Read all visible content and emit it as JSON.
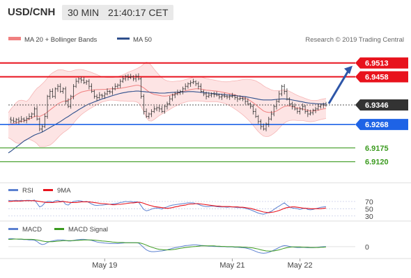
{
  "header": {
    "symbol": "USD/CNH",
    "timeframe": "30 MIN",
    "clock": "21:40:17 CET"
  },
  "legend": {
    "bb_label": "MA 20 + Bollinger Bands",
    "ma50_label": "MA 50",
    "copyright": "Research © 2019 Trading Central"
  },
  "colors": {
    "bb_fill": "#fde4e4",
    "bb_line": "#f08080",
    "ma50": "#2e4f8c",
    "price": "#333333",
    "resistance": "#e8121c",
    "current": "#333333",
    "pivot": "#1e63e6",
    "support": "#3a9a1e",
    "arrow": "#2e56a8",
    "rsi": "#5b80d0",
    "rsi_ma": "#e8121c",
    "macd": "#5b80d0",
    "macd_signal": "#3a9a1e"
  },
  "chart_data": [
    {
      "type": "line",
      "name": "price",
      "y_range": [
        6.905,
        6.957
      ],
      "x_ticks": [
        "May 19",
        "May 21",
        "May 22"
      ],
      "levels": [
        {
          "label": "6.9513",
          "value": 6.9513,
          "kind": "resistance"
        },
        {
          "label": "6.9458",
          "value": 6.9458,
          "kind": "resistance"
        },
        {
          "label": "6.9346",
          "value": 6.9346,
          "kind": "current"
        },
        {
          "label": "6.9268",
          "value": 6.9268,
          "kind": "pivot"
        },
        {
          "label": "6.9175",
          "value": 6.9175,
          "kind": "support"
        },
        {
          "label": "6.9120",
          "value": 6.912,
          "kind": "support"
        }
      ],
      "price": [
        6.929,
        6.9285,
        6.928,
        6.9288,
        6.9282,
        6.929,
        6.9285,
        6.9292,
        6.93,
        6.931,
        6.933,
        6.929,
        6.925,
        6.926,
        6.93,
        6.938,
        6.94,
        6.938,
        6.941,
        6.942,
        6.94,
        6.941,
        6.936,
        6.934,
        6.938,
        6.942,
        6.944,
        6.945,
        6.9445,
        6.9435,
        6.944,
        6.942,
        6.94,
        6.938,
        6.9375,
        6.9385,
        6.9382,
        6.939,
        6.94,
        6.9398,
        6.941,
        6.942,
        6.9425,
        6.944,
        6.945,
        6.946,
        6.9455,
        6.9458,
        6.945,
        6.946,
        6.945,
        6.938,
        6.932,
        6.93,
        6.931,
        6.932,
        6.933,
        6.9335,
        6.933,
        6.932,
        6.934,
        6.935,
        6.937,
        6.9385,
        6.939,
        6.9395,
        6.94,
        6.941,
        6.942,
        6.943,
        6.9435,
        6.9438,
        6.943,
        6.942,
        6.94,
        6.939,
        6.938,
        6.9385,
        6.939,
        6.9388,
        6.9385,
        6.9378,
        6.9382,
        6.938,
        6.9378,
        6.938,
        6.9382,
        6.9375,
        6.937,
        6.9372,
        6.937,
        6.936,
        6.935,
        6.934,
        6.932,
        6.93,
        6.928,
        6.926,
        6.925,
        6.927,
        6.929,
        6.931,
        6.934,
        6.936,
        6.939,
        6.942,
        6.94,
        6.937,
        6.935,
        6.934,
        6.933,
        6.932,
        6.933,
        6.934,
        6.932,
        6.931,
        6.9315,
        6.9325,
        6.933,
        6.934,
        6.9346,
        6.9345,
        6.9346
      ],
      "ma20": [
        6.9265,
        6.927,
        6.9272,
        6.9275,
        6.9278,
        6.928,
        6.9283,
        6.9285,
        6.929,
        6.9295,
        6.93,
        6.9302,
        6.93,
        6.9305,
        6.931,
        6.9318,
        6.9326,
        6.9334,
        6.9342,
        6.935,
        6.9356,
        6.936,
        6.9362,
        6.9365,
        6.937,
        6.9378,
        6.9386,
        6.9392,
        6.9397,
        6.94,
        6.9402,
        6.9404,
        6.9405,
        6.9406,
        6.9407,
        6.9407,
        6.9408,
        6.9408,
        6.9409,
        6.941,
        6.941,
        6.941,
        6.9411,
        6.9412,
        6.9414,
        6.9416,
        6.9418,
        6.942,
        6.9422,
        6.9424,
        6.9424,
        6.942,
        6.9414,
        6.9406,
        6.9398,
        6.9392,
        6.9388,
        6.9386,
        6.9384,
        6.9382,
        6.9381,
        6.9382,
        6.9384,
        6.9387,
        6.939,
        6.9393,
        6.9396,
        6.9399,
        6.9402,
        6.9405,
        6.9407,
        6.9409,
        6.941,
        6.941,
        6.9409,
        6.9407,
        6.9405,
        6.9404,
        6.9403,
        6.9402,
        6.9401,
        6.9399,
        6.9397,
        6.9395,
        6.9393,
        6.9391,
        6.9389,
        6.9386,
        6.9383,
        6.938,
        6.9377,
        6.9373,
        6.9368,
        6.9362,
        6.9355,
        6.9347,
        6.9338,
        6.933,
        6.9322,
        6.9318,
        6.9316,
        6.9316,
        6.9318,
        6.9322,
        6.9328,
        6.9335,
        6.934,
        6.9342,
        6.9342,
        6.934,
        6.9337,
        6.9334,
        6.9332,
        6.933,
        6.9327,
        6.9324,
        6.9322,
        6.9322,
        6.9323,
        6.9325,
        6.9328,
        6.933,
        6.9332
      ],
      "bb_width": [
        0.005,
        0.006,
        0.007,
        0.008,
        0.0085,
        0.0085,
        0.008,
        0.0075,
        0.008,
        0.009,
        0.01,
        0.011,
        0.012,
        0.0125,
        0.013,
        0.0135,
        0.014,
        0.014,
        0.0138,
        0.0135,
        0.013,
        0.0125,
        0.012,
        0.0115,
        0.011,
        0.0105,
        0.01,
        0.0095,
        0.009,
        0.0085,
        0.008,
        0.0075,
        0.007,
        0.0065,
        0.006,
        0.0055,
        0.005,
        0.0048,
        0.0046,
        0.0045,
        0.0045,
        0.0046,
        0.0048,
        0.005,
        0.0052,
        0.0055,
        0.0058,
        0.006,
        0.0062,
        0.0065,
        0.007,
        0.008,
        0.0095,
        0.011,
        0.0115,
        0.011,
        0.01,
        0.009,
        0.008,
        0.0072,
        0.0065,
        0.006,
        0.0056,
        0.0052,
        0.005,
        0.0048,
        0.0046,
        0.0045,
        0.0045,
        0.0045,
        0.0046,
        0.0047,
        0.0048,
        0.0048,
        0.0048,
        0.0047,
        0.0046,
        0.0045,
        0.0044,
        0.0043,
        0.0042,
        0.0042,
        0.0042,
        0.0043,
        0.0045,
        0.0048,
        0.0052,
        0.0056,
        0.006,
        0.0065,
        0.007,
        0.0075,
        0.008,
        0.0085,
        0.009,
        0.0095,
        0.0098,
        0.01,
        0.01,
        0.0098,
        0.0095,
        0.009,
        0.0085,
        0.008,
        0.0075,
        0.007,
        0.0066,
        0.0062,
        0.0058,
        0.0055,
        0.0052,
        0.005,
        0.0048,
        0.0046,
        0.0045,
        0.0044,
        0.0043,
        0.0042,
        0.0041,
        0.004,
        0.004,
        0.004,
        0.004
      ],
      "ma50": [
        6.9155,
        6.9162,
        6.917,
        6.9178,
        6.9186,
        6.9194,
        6.9202,
        6.9208,
        6.9214,
        6.922,
        6.9226,
        6.923,
        6.9234,
        6.9238,
        6.9244,
        6.925,
        6.9256,
        6.9262,
        6.9268,
        6.9274,
        6.928,
        6.9287,
        6.9294,
        6.93,
        6.9307,
        6.9314,
        6.932,
        6.9327,
        6.9333,
        6.9339,
        6.9345,
        6.935,
        6.9354,
        6.9358,
        6.9362,
        6.9366,
        6.937,
        6.9373,
        6.9376,
        6.938,
        6.9383,
        6.9386,
        6.9389,
        6.9392,
        6.9394,
        6.9396,
        6.9398,
        6.9399,
        6.94,
        6.9401,
        6.9401,
        6.94,
        6.9399,
        6.9398,
        6.9397,
        6.9396,
        6.9395,
        6.9394,
        6.9393,
        6.9393,
        6.9393,
        6.9394,
        6.9395,
        6.9396,
        6.9396,
        6.9397,
        6.9397,
        6.9398,
        6.9398,
        6.9399,
        6.9399,
        6.9399,
        6.9398,
        6.9397,
        6.9396,
        6.9395,
        6.9394,
        6.9393,
        6.9392,
        6.9391,
        6.939,
        6.9389,
        6.9388,
        6.9387,
        6.9386,
        6.9385,
        6.9384,
        6.9383,
        6.9382,
        6.9381,
        6.938,
        6.9379,
        6.9377,
        6.9375,
        6.9373,
        6.9371,
        6.9369,
        6.9367,
        6.9366,
        6.9366,
        6.9366,
        6.9366,
        6.9367,
        6.9368,
        6.9369,
        6.937,
        6.937,
        6.9369,
        6.9368,
        6.9366,
        6.9364,
        6.9362,
        6.936,
        6.9358,
        6.9356,
        6.9354,
        6.9353,
        6.9352,
        6.9351,
        6.935,
        6.935,
        6.935,
        6.935
      ]
    },
    {
      "type": "line",
      "name": "rsi",
      "title": "RSI",
      "ma_label": "9MA",
      "y_range": [
        20,
        85
      ],
      "y_ticks": [
        70,
        50,
        30
      ],
      "rsi": [
        73,
        72,
        72,
        73,
        72,
        73,
        72,
        73,
        73,
        72,
        74,
        65,
        55,
        58,
        66,
        70,
        70,
        68,
        72,
        73,
        70,
        71,
        62,
        60,
        66,
        70,
        71,
        72,
        71,
        69,
        70,
        67,
        63,
        60,
        59,
        60,
        60,
        61,
        62,
        62,
        63,
        64,
        65,
        67,
        68,
        70,
        69,
        70,
        68,
        69,
        68,
        58,
        48,
        44,
        46,
        49,
        51,
        52,
        51,
        49,
        53,
        55,
        58,
        60,
        61,
        62,
        63,
        64,
        65,
        66,
        66,
        66,
        64,
        62,
        59,
        57,
        56,
        56,
        57,
        57,
        56,
        55,
        55,
        55,
        54,
        55,
        55,
        54,
        53,
        53,
        53,
        51,
        49,
        47,
        44,
        41,
        38,
        36,
        35,
        37,
        40,
        43,
        48,
        53,
        57,
        62,
        66,
        60,
        55,
        52,
        51,
        50,
        48,
        50,
        52,
        48,
        47,
        48,
        50,
        52,
        54,
        55,
        56
      ],
      "ma": [
        70,
        70,
        71,
        71,
        71,
        71,
        72,
        72,
        72,
        72,
        72,
        71,
        70,
        69,
        68,
        67,
        67,
        67,
        68,
        69,
        69,
        70,
        69,
        68,
        67,
        67,
        67,
        68,
        69,
        69,
        69,
        69,
        68,
        67,
        66,
        65,
        64,
        64,
        63,
        62,
        61,
        61,
        62,
        62,
        63,
        64,
        65,
        66,
        66,
        67,
        68,
        67,
        65,
        62,
        60,
        58,
        56,
        55,
        54,
        53,
        52,
        51,
        52,
        53,
        55,
        56,
        58,
        59,
        60,
        62,
        63,
        63,
        64,
        64,
        63,
        62,
        61,
        60,
        59,
        58,
        57,
        57,
        56,
        56,
        56,
        56,
        55,
        55,
        55,
        54,
        54,
        53,
        52,
        51,
        49,
        47,
        45,
        43,
        41,
        40,
        39,
        40,
        41,
        43,
        45,
        48,
        51,
        53,
        54,
        55,
        55,
        54,
        53,
        52,
        51,
        51,
        50,
        50,
        50,
        50,
        50,
        51,
        52
      ]
    },
    {
      "type": "line",
      "name": "macd",
      "title": "MACD",
      "signal_label": "MACD Signal",
      "y_range": [
        -0.004,
        0.0045
      ],
      "y_ticks": [
        0
      ],
      "macd": [
        0.003,
        0.0031,
        0.003,
        0.0029,
        0.0028,
        0.0028,
        0.0027,
        0.0027,
        0.0026,
        0.0026,
        0.0025,
        0.002,
        0.0012,
        0.0008,
        0.001,
        0.0016,
        0.002,
        0.0022,
        0.0024,
        0.0026,
        0.0026,
        0.0026,
        0.0024,
        0.0022,
        0.0022,
        0.0024,
        0.0026,
        0.0027,
        0.0028,
        0.0028,
        0.0027,
        0.0026,
        0.0024,
        0.0021,
        0.0018,
        0.0016,
        0.0015,
        0.0014,
        0.0013,
        0.0012,
        0.0012,
        0.0012,
        0.0012,
        0.0013,
        0.0014,
        0.0015,
        0.0015,
        0.0015,
        0.0015,
        0.0015,
        0.0014,
        0.0006,
        -0.0004,
        -0.0012,
        -0.0017,
        -0.0019,
        -0.0019,
        -0.0018,
        -0.0017,
        -0.0016,
        -0.0014,
        -0.0012,
        -0.0009,
        -0.0006,
        -0.0004,
        -0.0002,
        0.0,
        0.0002,
        0.0004,
        0.0005,
        0.0006,
        0.0007,
        0.0007,
        0.0006,
        0.0005,
        0.0004,
        0.0003,
        0.0002,
        0.0002,
        0.0001,
        0.0001,
        0.0,
        0.0,
        0.0,
        -0.0001,
        -0.0001,
        -0.0001,
        -0.0002,
        -0.0002,
        -0.0003,
        -0.0004,
        -0.0005,
        -0.0007,
        -0.001,
        -0.0014,
        -0.0018,
        -0.0022,
        -0.0024,
        -0.0025,
        -0.0024,
        -0.0022,
        -0.0018,
        -0.0013,
        -0.0008,
        -0.0003,
        0.0002,
        0.0004,
        0.0003,
        0.0001,
        -0.0001,
        -0.0002,
        -0.0003,
        -0.0003,
        -0.0002,
        -0.0003,
        -0.0004,
        -0.0004,
        -0.0004,
        -0.0003,
        -0.0002,
        -0.0001,
        0.0,
        0.0
      ],
      "signal": [
        0.0028,
        0.0028,
        0.0029,
        0.0029,
        0.0029,
        0.0029,
        0.0028,
        0.0028,
        0.0028,
        0.0028,
        0.0027,
        0.0026,
        0.0024,
        0.0022,
        0.002,
        0.0019,
        0.0019,
        0.0019,
        0.002,
        0.0021,
        0.0022,
        0.0023,
        0.0023,
        0.0023,
        0.0023,
        0.0023,
        0.0024,
        0.0024,
        0.0025,
        0.0026,
        0.0026,
        0.0026,
        0.0026,
        0.0025,
        0.0024,
        0.0023,
        0.0022,
        0.0021,
        0.002,
        0.0019,
        0.0018,
        0.0017,
        0.0016,
        0.0016,
        0.0016,
        0.0015,
        0.0015,
        0.0015,
        0.0015,
        0.0015,
        0.0015,
        0.0013,
        0.001,
        0.0006,
        0.0002,
        -0.0002,
        -0.0005,
        -0.0008,
        -0.001,
        -0.0011,
        -0.0012,
        -0.0012,
        -0.0012,
        -0.0011,
        -0.001,
        -0.0008,
        -0.0006,
        -0.0005,
        -0.0003,
        -0.0002,
        -0.0001,
        0.0,
        0.0001,
        0.0002,
        0.0003,
        0.0003,
        0.0003,
        0.0003,
        0.0003,
        0.0003,
        0.0002,
        0.0002,
        0.0001,
        0.0001,
        0.0,
        0.0,
        0.0,
        -0.0001,
        -0.0001,
        -0.0001,
        -0.0002,
        -0.0002,
        -0.0003,
        -0.0004,
        -0.0005,
        -0.0007,
        -0.0009,
        -0.0012,
        -0.0014,
        -0.0016,
        -0.0017,
        -0.0017,
        -0.0016,
        -0.0014,
        -0.0012,
        -0.0009,
        -0.0006,
        -0.0004,
        -0.0002,
        -0.0001,
        -0.0001,
        -0.0001,
        -0.0001,
        -0.0002,
        -0.0002,
        -0.0002,
        -0.0003,
        -0.0003,
        -0.0003,
        -0.0003,
        -0.0002,
        -0.0002,
        -0.0001
      ]
    }
  ]
}
